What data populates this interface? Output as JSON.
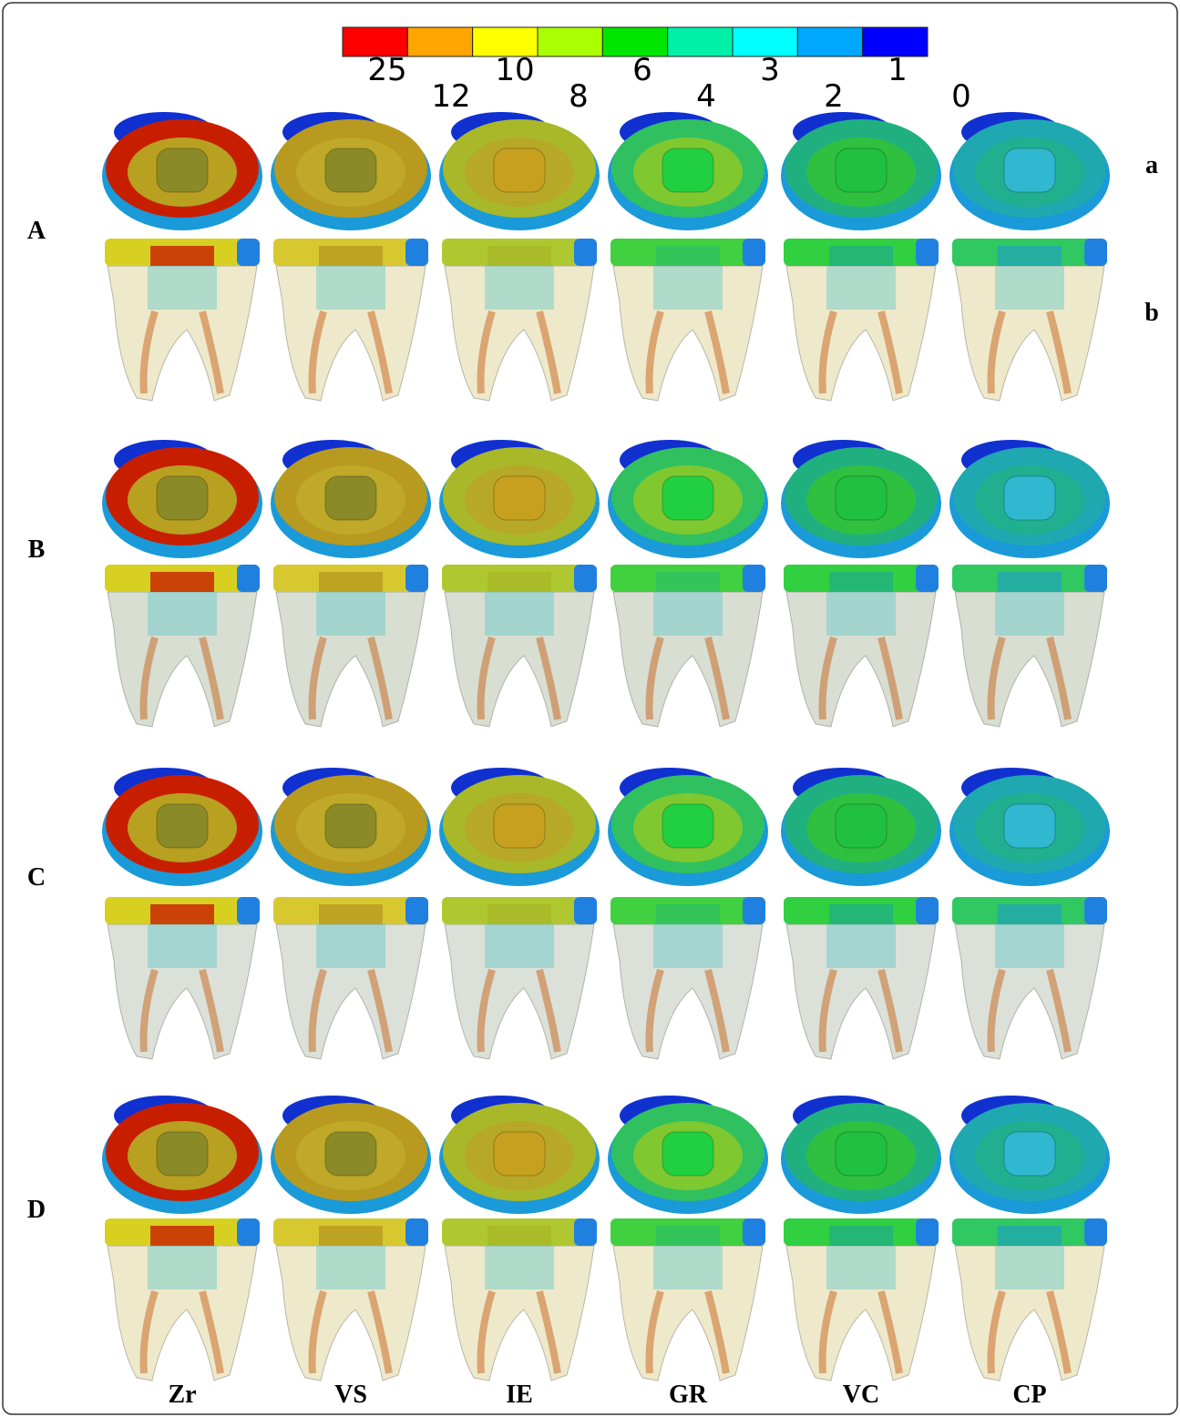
{
  "legend": {
    "colors": [
      "#ff0000",
      "#ffa500",
      "#ffff00",
      "#aaff00",
      "#00e600",
      "#00f0a8",
      "#00ffff",
      "#00a8ff",
      "#0000ff"
    ],
    "labels": [
      25,
      12,
      10,
      8,
      6,
      4,
      3,
      2,
      1,
      0
    ]
  },
  "rows": [
    "A",
    "B",
    "C",
    "D"
  ],
  "subrows": [
    "a",
    "b"
  ],
  "columns": [
    "Zr",
    "VS",
    "IE",
    "GR",
    "VC",
    "CP"
  ]
}
